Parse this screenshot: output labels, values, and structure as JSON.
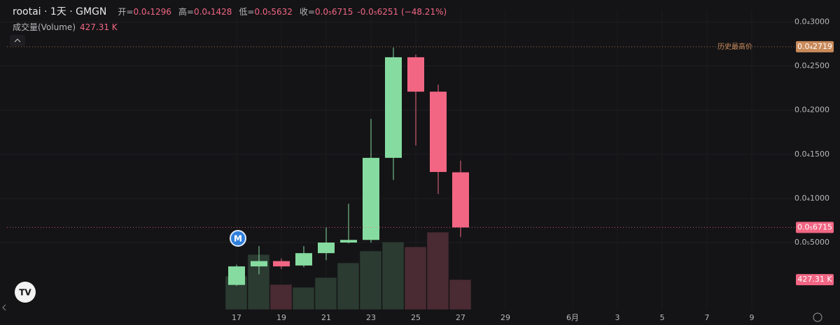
{
  "header": {
    "symbol": "rootai · 1天 · GMGN",
    "fields": [
      {
        "label": "开=",
        "value": "0.0₄1296"
      },
      {
        "label": "高=",
        "value": "0.0₄1428"
      },
      {
        "label": "低=",
        "value": "0.0₅5632"
      },
      {
        "label": "收=",
        "value": "0.0₅6715"
      }
    ],
    "change": "-0.0₅6251 (−48.21%)",
    "volume_label": "成交量(Volume)",
    "volume_value": "427.31 K"
  },
  "chart_data": {
    "type": "candlestick",
    "categories": [
      "17",
      null,
      "19",
      null,
      "21",
      null,
      "23",
      null,
      "25",
      null,
      "27",
      null,
      "29",
      null,
      null,
      "6月",
      null,
      "3",
      null,
      "5",
      null,
      "7",
      null,
      "9"
    ],
    "open": [
      2e-07,
      2.3e-06,
      2.9e-06,
      2.4e-06,
      3.8e-06,
      5e-06,
      5.3e-06,
      1.46e-05,
      2.6e-05,
      2.21e-05,
      1.296e-05,
      null,
      null,
      null,
      null,
      null,
      null,
      null,
      null,
      null,
      null,
      null,
      null,
      null
    ],
    "high": [
      2.5e-06,
      4.6e-06,
      3.2e-06,
      4.6e-06,
      6.7e-06,
      9.4e-06,
      1.9e-05,
      2.71e-05,
      2.63e-05,
      2.29e-05,
      1.428e-05,
      null,
      null,
      null,
      null,
      null,
      null,
      null,
      null,
      null,
      null,
      null,
      null,
      null
    ],
    "low": [
      1e-07,
      1.4e-06,
      2e-06,
      2.2e-06,
      3e-06,
      4.9e-06,
      5e-06,
      1.21e-05,
      1.6e-05,
      1.05e-05,
      5.632e-06,
      null,
      null,
      null,
      null,
      null,
      null,
      null,
      null,
      null,
      null,
      null,
      null,
      null
    ],
    "close": [
      2.3e-06,
      2.9e-06,
      2.3e-06,
      3.8e-06,
      5e-06,
      5.3e-06,
      1.46e-05,
      2.6e-05,
      2.21e-05,
      1.3e-05,
      6.715e-06,
      null,
      null,
      null,
      null,
      null,
      null,
      null,
      null,
      null,
      null,
      null,
      null,
      null
    ],
    "volume": {
      "name": "成交量(Volume)",
      "values": [
        477,
        785,
        358,
        318,
        457,
        666,
        835,
        964,
        894,
        1103,
        427.31,
        null,
        null,
        null,
        null,
        null,
        null,
        null,
        null,
        null,
        null,
        null,
        null,
        null
      ],
      "ylim": [
        0,
        4260
      ],
      "up_color": "#2b3b31",
      "down_color": "#4a2b33"
    },
    "up_color": "#86dca0",
    "down_color": "#f26684",
    "ylim": [
      -2.6e-06,
      3.13e-05
    ],
    "yticks": [
      {
        "value": 3e-05,
        "label": "0.0₄3000"
      },
      {
        "value": 2.5e-05,
        "label": "0.0₄2500"
      },
      {
        "value": 2e-05,
        "label": "0.0₄2000"
      },
      {
        "value": 1.5e-05,
        "label": "0.0₄1500"
      },
      {
        "value": 1e-05,
        "label": "0.0₄1000"
      },
      {
        "value": 5e-06,
        "label": "0.0₅5000"
      }
    ],
    "grid": true,
    "price_lines": [
      {
        "value": 2.719e-05,
        "label": "0.0₄2719",
        "text": "历史最高价",
        "color": "#c98a5a"
      },
      {
        "value": 6.715e-06,
        "label": "0.0₅6715",
        "color": "#f26684"
      }
    ],
    "volume_badge": {
      "value": 427.31,
      "label": "427.31 K",
      "color": "#f26684"
    }
  }
}
